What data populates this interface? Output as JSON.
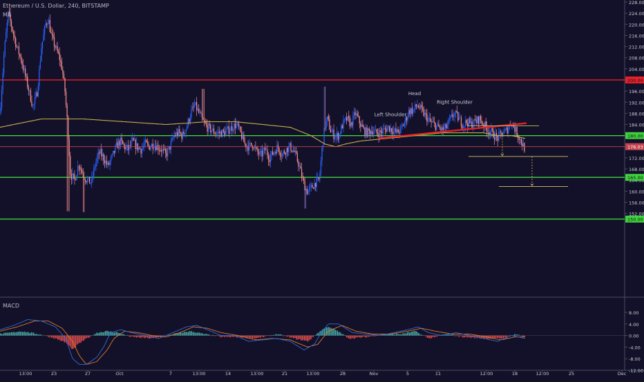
{
  "header": {
    "title": "Ethereum / U.S. Dollar, 240, BITSTAMP",
    "ma_label": "MA",
    "macd_label": "MACD"
  },
  "colors": {
    "background": "#131129",
    "axis_text": "#c9cbd4",
    "candle_up": "#2962ff",
    "candle_down": "#ef8a8a",
    "resistance": "#e8202a",
    "support": "#3fd23f",
    "ma": "#c9b04a",
    "price_line": "#c2434e",
    "macd_line": "#2f6bd8",
    "signal_line": "#e07b2a",
    "hist_up": "#4db6ac",
    "hist_down": "#ef5350",
    "target": "#d4c15a"
  },
  "chart_data": [
    {
      "type": "candlestick",
      "title": "Ethereum / U.S. Dollar, 240, BITSTAMP",
      "y_axis_ticks": [
        152,
        156,
        160,
        164,
        168,
        172,
        176,
        180,
        184,
        188,
        192,
        196,
        200,
        204,
        208,
        212,
        216,
        220,
        224,
        228
      ],
      "ylim": [
        150,
        229
      ],
      "x_axis_labels": [
        "13:00",
        "23",
        "27",
        "Oct",
        "7",
        "13:00",
        "14",
        "13:00",
        "21",
        "13:00",
        "28",
        "Nov",
        "5",
        "11",
        "12:00",
        "18",
        "12:00",
        "25",
        "Dec"
      ],
      "price_anchors": [
        [
          0,
          188
        ],
        [
          6,
          210
        ],
        [
          12,
          224
        ],
        [
          18,
          218
        ],
        [
          24,
          212
        ],
        [
          30,
          208
        ],
        [
          36,
          202
        ],
        [
          42,
          196
        ],
        [
          48,
          190
        ],
        [
          54,
          196
        ],
        [
          60,
          212
        ],
        [
          66,
          220
        ],
        [
          70,
          222
        ],
        [
          74,
          216
        ],
        [
          80,
          212
        ],
        [
          86,
          208
        ],
        [
          90,
          204
        ],
        [
          94,
          196
        ],
        [
          98,
          183
        ],
        [
          102,
          166
        ],
        [
          108,
          164
        ],
        [
          114,
          170
        ],
        [
          120,
          166
        ],
        [
          126,
          164
        ],
        [
          132,
          163
        ],
        [
          138,
          170
        ],
        [
          144,
          174
        ],
        [
          150,
          172
        ],
        [
          156,
          169
        ],
        [
          162,
          172
        ],
        [
          168,
          176
        ],
        [
          174,
          178
        ],
        [
          180,
          176
        ],
        [
          186,
          175
        ],
        [
          192,
          178
        ],
        [
          198,
          176
        ],
        [
          204,
          175
        ],
        [
          210,
          177
        ],
        [
          216,
          176
        ],
        [
          222,
          177
        ],
        [
          228,
          176
        ],
        [
          234,
          175
        ],
        [
          240,
          173
        ],
        [
          246,
          176
        ],
        [
          252,
          180
        ],
        [
          258,
          181
        ],
        [
          264,
          180
        ],
        [
          270,
          183
        ],
        [
          276,
          188
        ],
        [
          282,
          191
        ],
        [
          288,
          188
        ],
        [
          294,
          185
        ],
        [
          300,
          183
        ],
        [
          306,
          182
        ],
        [
          312,
          181
        ],
        [
          318,
          181
        ],
        [
          324,
          181
        ],
        [
          330,
          182
        ],
        [
          336,
          183
        ],
        [
          342,
          184
        ],
        [
          348,
          181
        ],
        [
          354,
          177
        ],
        [
          360,
          176
        ],
        [
          366,
          177
        ],
        [
          372,
          174
        ],
        [
          378,
          173
        ],
        [
          384,
          175
        ],
        [
          390,
          172
        ],
        [
          396,
          174
        ],
        [
          402,
          176
        ],
        [
          408,
          173
        ],
        [
          414,
          175
        ],
        [
          420,
          176
        ],
        [
          426,
          174
        ],
        [
          432,
          170
        ],
        [
          438,
          164
        ],
        [
          444,
          160
        ],
        [
          450,
          161
        ],
        [
          456,
          163
        ],
        [
          462,
          164
        ],
        [
          466,
          175
        ],
        [
          470,
          183
        ],
        [
          474,
          186
        ],
        [
          478,
          182
        ],
        [
          484,
          180
        ],
        [
          490,
          180
        ],
        [
          496,
          184
        ],
        [
          502,
          186
        ],
        [
          508,
          184
        ],
        [
          514,
          188
        ],
        [
          520,
          185
        ],
        [
          526,
          182
        ],
        [
          532,
          181
        ],
        [
          538,
          182
        ],
        [
          544,
          181
        ],
        [
          550,
          181
        ],
        [
          556,
          182
        ],
        [
          562,
          183
        ],
        [
          568,
          182
        ],
        [
          574,
          181
        ],
        [
          580,
          182
        ],
        [
          586,
          185
        ],
        [
          592,
          189
        ],
        [
          598,
          189
        ],
        [
          604,
          191
        ],
        [
          610,
          189
        ],
        [
          616,
          187
        ],
        [
          622,
          185
        ],
        [
          628,
          184
        ],
        [
          634,
          183
        ],
        [
          640,
          182
        ],
        [
          646,
          183
        ],
        [
          652,
          186
        ],
        [
          658,
          188
        ],
        [
          664,
          186
        ],
        [
          670,
          184
        ],
        [
          676,
          185
        ],
        [
          682,
          184
        ],
        [
          688,
          185
        ],
        [
          694,
          186
        ],
        [
          700,
          184
        ],
        [
          706,
          182
        ],
        [
          712,
          181
        ],
        [
          716,
          180
        ],
        [
          720,
          179
        ],
        [
          726,
          181
        ],
        [
          730,
          181
        ],
        [
          736,
          183
        ],
        [
          740,
          185
        ],
        [
          744,
          183
        ],
        [
          748,
          181
        ],
        [
          752,
          179
        ],
        [
          756,
          177
        ],
        [
          760,
          175
        ]
      ],
      "ma_anchors": [
        [
          0,
          183
        ],
        [
          60,
          186
        ],
        [
          120,
          186
        ],
        [
          180,
          185
        ],
        [
          240,
          184
        ],
        [
          300,
          185
        ],
        [
          340,
          185
        ],
        [
          380,
          184
        ],
        [
          420,
          183
        ],
        [
          450,
          180
        ],
        [
          470,
          177
        ],
        [
          486,
          176
        ],
        [
          500,
          177
        ],
        [
          520,
          178
        ],
        [
          560,
          179
        ],
        [
          600,
          180
        ],
        [
          640,
          181
        ],
        [
          680,
          181
        ],
        [
          700,
          181
        ],
        [
          720,
          180
        ],
        [
          740,
          180
        ],
        [
          760,
          179
        ]
      ],
      "horizontal_levels": [
        {
          "name": "resistance-200",
          "price": 200,
          "label": "200.00",
          "color": "#e8202a"
        },
        {
          "name": "support-180",
          "price": 180,
          "label": "180.00",
          "color": "#3fd23f"
        },
        {
          "name": "support-165",
          "price": 165,
          "label": "165.00",
          "color": "#3fd23f"
        },
        {
          "name": "support-150",
          "price": 150,
          "label": "150.00",
          "color": "#3fd23f"
        }
      ],
      "last_price": {
        "price": 176.03,
        "label": "176.03"
      },
      "neckline": {
        "from": [
          548,
          179
        ],
        "to": [
          762,
          184.5
        ]
      },
      "neck_extension": {
        "from": [
          676,
          183.5
        ],
        "to": [
          780,
          183.5
        ]
      },
      "targets": [
        {
          "price": 172.5,
          "from": 678,
          "to": 822
        },
        {
          "price": 161.7,
          "from": 722,
          "to": 822
        }
      ],
      "pattern_labels": [
        {
          "text": "Head",
          "x": 600,
          "price": 194.5
        },
        {
          "text": "Right Shoulder",
          "x": 658,
          "price": 191.5
        },
        {
          "text": "Left Shoulder",
          "x": 565,
          "price": 187
        }
      ]
    },
    {
      "type": "macd",
      "title": "MACD",
      "y_axis_ticks": [
        8,
        4,
        0,
        -4,
        -8,
        -12
      ],
      "ylim": [
        -13,
        9.4
      ],
      "macd_anchors": [
        [
          0,
          2
        ],
        [
          20,
          3.5
        ],
        [
          40,
          5.5
        ],
        [
          60,
          5
        ],
        [
          80,
          3
        ],
        [
          95,
          -1
        ],
        [
          105,
          -8
        ],
        [
          115,
          -10
        ],
        [
          125,
          -10
        ],
        [
          140,
          -7.5
        ],
        [
          150,
          -4
        ],
        [
          160,
          1
        ],
        [
          175,
          2
        ],
        [
          190,
          1
        ],
        [
          210,
          0
        ],
        [
          230,
          -1
        ],
        [
          250,
          1
        ],
        [
          270,
          3
        ],
        [
          285,
          3.5
        ],
        [
          300,
          2
        ],
        [
          320,
          0
        ],
        [
          340,
          0
        ],
        [
          360,
          -2
        ],
        [
          380,
          -1.5
        ],
        [
          400,
          -1
        ],
        [
          420,
          -2
        ],
        [
          440,
          -5
        ],
        [
          455,
          -3
        ],
        [
          465,
          1
        ],
        [
          475,
          4
        ],
        [
          490,
          4
        ],
        [
          510,
          1
        ],
        [
          530,
          0.5
        ],
        [
          550,
          0
        ],
        [
          570,
          1
        ],
        [
          590,
          2
        ],
        [
          605,
          3
        ],
        [
          620,
          1
        ],
        [
          640,
          0
        ],
        [
          660,
          1
        ],
        [
          680,
          0
        ],
        [
          700,
          -1
        ],
        [
          720,
          -2
        ],
        [
          740,
          0
        ],
        [
          760,
          -1
        ]
      ],
      "signal_anchors": [
        [
          0,
          1.5
        ],
        [
          25,
          3
        ],
        [
          50,
          5
        ],
        [
          70,
          5
        ],
        [
          90,
          2.5
        ],
        [
          105,
          -2
        ],
        [
          115,
          -7
        ],
        [
          125,
          -10
        ],
        [
          140,
          -9
        ],
        [
          155,
          -5
        ],
        [
          165,
          -1
        ],
        [
          180,
          1.5
        ],
        [
          200,
          1
        ],
        [
          220,
          0
        ],
        [
          240,
          -0.5
        ],
        [
          260,
          1
        ],
        [
          280,
          3
        ],
        [
          300,
          2.5
        ],
        [
          320,
          1
        ],
        [
          345,
          0
        ],
        [
          370,
          -1.5
        ],
        [
          395,
          -1
        ],
        [
          420,
          -1.5
        ],
        [
          445,
          -4
        ],
        [
          460,
          -3
        ],
        [
          475,
          1.5
        ],
        [
          495,
          3.5
        ],
        [
          515,
          1.5
        ],
        [
          540,
          0.5
        ],
        [
          565,
          0.5
        ],
        [
          590,
          1.5
        ],
        [
          610,
          2.5
        ],
        [
          630,
          1.5
        ],
        [
          655,
          0.5
        ],
        [
          680,
          0.5
        ],
        [
          705,
          -0.5
        ],
        [
          725,
          -1.5
        ],
        [
          745,
          -0.5
        ],
        [
          760,
          -0.5
        ]
      ],
      "histogram_anchors": [
        [
          0,
          0.5
        ],
        [
          30,
          1.5
        ],
        [
          55,
          0.5
        ],
        [
          80,
          -1
        ],
        [
          95,
          -2.5
        ],
        [
          105,
          -5
        ],
        [
          112,
          -3
        ],
        [
          125,
          -1
        ],
        [
          140,
          1
        ],
        [
          155,
          1.5
        ],
        [
          170,
          1
        ],
        [
          190,
          -0.5
        ],
        [
          220,
          -1
        ],
        [
          250,
          0.5
        ],
        [
          275,
          1.5
        ],
        [
          295,
          0.5
        ],
        [
          320,
          -0.5
        ],
        [
          345,
          -0.5
        ],
        [
          370,
          -1
        ],
        [
          400,
          0.5
        ],
        [
          425,
          -1
        ],
        [
          445,
          -2
        ],
        [
          460,
          1
        ],
        [
          472,
          3
        ],
        [
          485,
          2
        ],
        [
          505,
          -1
        ],
        [
          530,
          -0.5
        ],
        [
          555,
          0.5
        ],
        [
          580,
          0.5
        ],
        [
          600,
          1.5
        ],
        [
          620,
          -1
        ],
        [
          645,
          0.5
        ],
        [
          670,
          -0.5
        ],
        [
          700,
          -1
        ],
        [
          725,
          -1
        ],
        [
          745,
          0.5
        ],
        [
          760,
          -0.5
        ]
      ]
    }
  ]
}
